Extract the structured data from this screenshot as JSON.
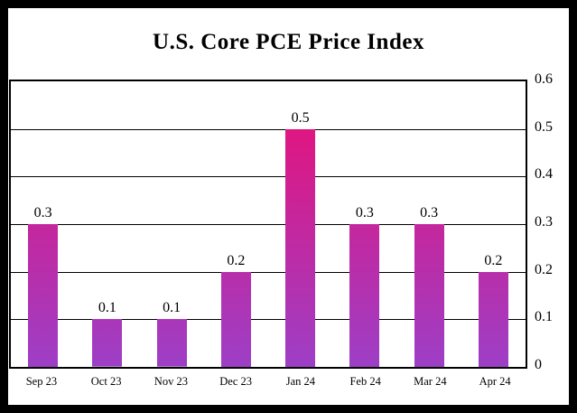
{
  "chart_data": {
    "type": "bar",
    "title": "U.S. Core PCE Price Index",
    "categories": [
      "Sep 23",
      "Oct 23",
      "Nov 23",
      "Dec 23",
      "Jan 24",
      "Feb 24",
      "Mar 24",
      "Apr 24"
    ],
    "values": [
      0.3,
      0.1,
      0.1,
      0.2,
      0.5,
      0.3,
      0.3,
      0.2
    ],
    "value_labels": [
      "0.3",
      "0.1",
      "0.1",
      "0.2",
      "0.5",
      "0.3",
      "0.3",
      "0.2"
    ],
    "ylim": [
      0,
      0.6
    ],
    "yticks": [
      "0",
      "0.1",
      "0.2",
      "0.3",
      "0.4",
      "0.5",
      "0.6"
    ],
    "grid": true,
    "yaxis_position": "right",
    "legend": "none",
    "colors": {
      "bar_gradient_top": "#ec0e74",
      "bar_gradient_bottom": "#9d3fc6",
      "axis": "#000000",
      "background": "#ffffff",
      "frame_border": "#000000"
    }
  }
}
